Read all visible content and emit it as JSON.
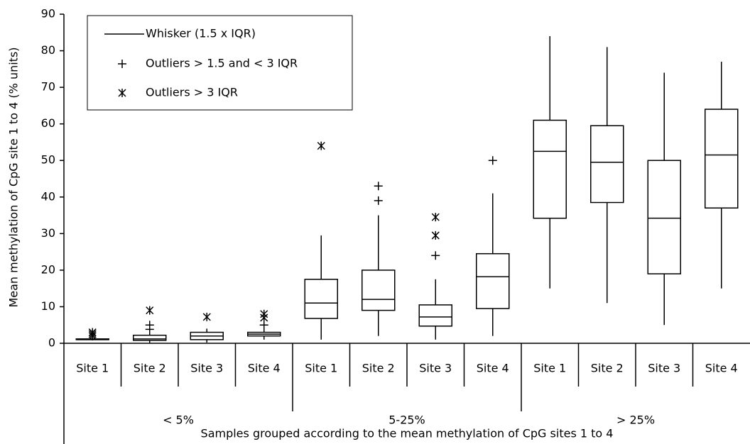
{
  "chart_data": {
    "type": "box",
    "y_label": "Mean methylation of CpG site 1 to 4 (% units)",
    "x_label": "Samples grouped according to the mean methylation of CpG sites 1 to 4",
    "ylim": [
      0,
      90
    ],
    "yticks": [
      0,
      10,
      20,
      30,
      40,
      50,
      60,
      70,
      80,
      90
    ],
    "outlier_color": "#8b1a1a",
    "legend": {
      "whisker": "Whisker (1.5 x IQR)",
      "outlier": "Outliers > 1.5 and < 3 IQR",
      "extreme": "Outliers > 3 IQR"
    },
    "groups": [
      {
        "name": "< 5%",
        "boxes": [
          {
            "category": "Site 1",
            "whisker_low": 0.8,
            "q1": 1,
            "median": 1,
            "q3": 1.2,
            "whisker_high": 1.3,
            "outliers": [],
            "extreme_outliers": [
              3,
              2.5,
              2
            ]
          },
          {
            "category": "Site 2",
            "whisker_low": 0,
            "q1": 0.8,
            "median": 1.2,
            "q3": 2.2,
            "whisker_high": 3,
            "outliers": [
              5,
              3.8
            ],
            "extreme_outliers": [
              9
            ]
          },
          {
            "category": "Site 3",
            "whisker_low": 0.2,
            "q1": 1,
            "median": 2,
            "q3": 3,
            "whisker_high": 4,
            "outliers": [],
            "extreme_outliers": [
              7.2
            ]
          },
          {
            "category": "Site 4",
            "whisker_low": 1,
            "q1": 2,
            "median": 2.5,
            "q3": 3,
            "whisker_high": 4,
            "outliers": [
              5
            ],
            "extreme_outliers": [
              7,
              8
            ]
          }
        ]
      },
      {
        "name": "5-25%",
        "boxes": [
          {
            "category": "Site 1",
            "whisker_low": 1,
            "q1": 6.8,
            "median": 11,
            "q3": 17.5,
            "whisker_high": 29.5,
            "outliers": [],
            "extreme_outliers": [
              54
            ]
          },
          {
            "category": "Site 2",
            "whisker_low": 2,
            "q1": 9,
            "median": 12,
            "q3": 20,
            "whisker_high": 35,
            "outliers": [
              43,
              39
            ],
            "extreme_outliers": []
          },
          {
            "category": "Site 3",
            "whisker_low": 1,
            "q1": 4.7,
            "median": 7.2,
            "q3": 10.5,
            "whisker_high": 17.5,
            "outliers": [
              24
            ],
            "extreme_outliers": [
              34.5,
              29.5
            ]
          },
          {
            "category": "Site 4",
            "whisker_low": 2,
            "q1": 9.5,
            "median": 18.2,
            "q3": 24.5,
            "whisker_high": 41,
            "outliers": [
              50
            ],
            "extreme_outliers": []
          }
        ]
      },
      {
        "name": "> 25%",
        "boxes": [
          {
            "category": "Site 1",
            "whisker_low": 15,
            "q1": 34.2,
            "median": 52.5,
            "q3": 61,
            "whisker_high": 84,
            "outliers": [],
            "extreme_outliers": []
          },
          {
            "category": "Site 2",
            "whisker_low": 11,
            "q1": 38.5,
            "median": 49.5,
            "q3": 59.5,
            "whisker_high": 81,
            "outliers": [],
            "extreme_outliers": []
          },
          {
            "category": "Site 3",
            "whisker_low": 5,
            "q1": 19,
            "median": 34.2,
            "q3": 50,
            "whisker_high": 74,
            "outliers": [],
            "extreme_outliers": []
          },
          {
            "category": "Site 4",
            "whisker_low": 15,
            "q1": 37,
            "median": 51.5,
            "q3": 64,
            "whisker_high": 77,
            "outliers": [],
            "extreme_outliers": []
          }
        ]
      }
    ]
  }
}
